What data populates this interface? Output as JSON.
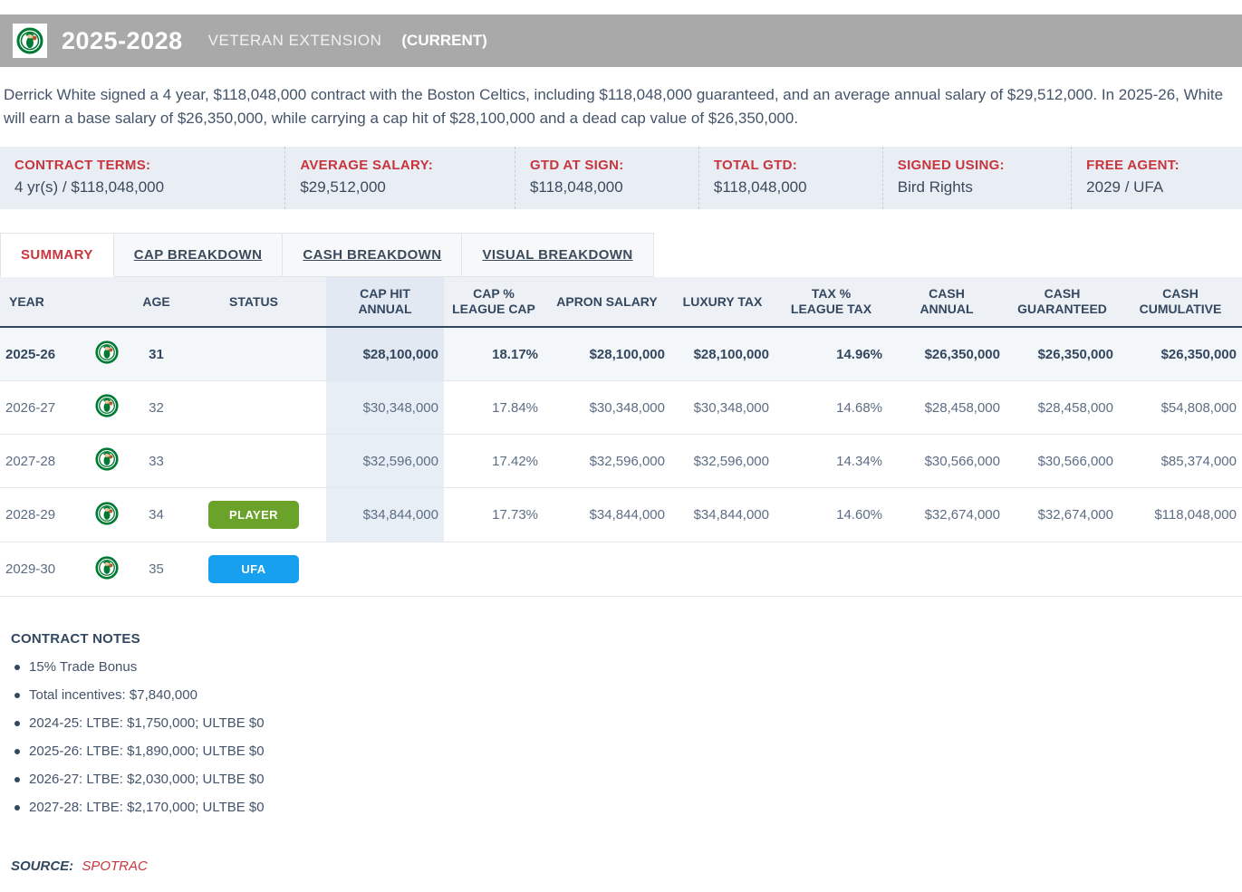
{
  "header": {
    "season_range": "2025-2028",
    "contract_type": "VETERAN EXTENSION",
    "current_flag": "(CURRENT)",
    "team_logo": "boston-celtics-logo"
  },
  "summary_text": "Derrick White signed a 4 year, $118,048,000 contract with the Boston Celtics, including $118,048,000 guaranteed, and an average annual salary of $29,512,000. In 2025-26, White will earn a base salary of $26,350,000, while carrying a cap hit of $28,100,000 and a dead cap value of $26,350,000.",
  "terms": [
    {
      "label": "CONTRACT TERMS:",
      "value": "4 yr(s) / $118,048,000"
    },
    {
      "label": "AVERAGE SALARY:",
      "value": "$29,512,000"
    },
    {
      "label": "GTD AT SIGN:",
      "value": "$118,048,000"
    },
    {
      "label": "TOTAL GTD:",
      "value": "$118,048,000"
    },
    {
      "label": "SIGNED USING:",
      "value": "Bird Rights"
    },
    {
      "label": "FREE AGENT:",
      "value": "2029 / UFA"
    }
  ],
  "tabs": [
    {
      "label": "SUMMARY",
      "active": true
    },
    {
      "label": "CAP BREAKDOWN",
      "active": false
    },
    {
      "label": "CASH BREAKDOWN",
      "active": false
    },
    {
      "label": "VISUAL BREAKDOWN",
      "active": false
    }
  ],
  "chart_data": {
    "type": "table",
    "title": "Contract year-by-year summary",
    "columns": [
      "YEAR",
      "",
      "AGE",
      "STATUS",
      "CAP HIT\nANNUAL",
      "CAP %\nLEAGUE CAP",
      "APRON SALARY",
      "LUXURY TAX",
      "TAX %\nLEAGUE TAX",
      "CASH\nANNUAL",
      "CASH\nGUARANTEED",
      "CASH\nCUMULATIVE"
    ],
    "rows": [
      {
        "year": "2025-26",
        "logo": "celtics-logo",
        "age": "31",
        "status": "",
        "status_color": "",
        "cap_hit": "$28,100,000",
        "cap_pct": "18.17%",
        "apron_salary": "$28,100,000",
        "luxury_tax": "$28,100,000",
        "tax_pct": "14.96%",
        "cash_annual": "$26,350,000",
        "cash_guaranteed": "$26,350,000",
        "cash_cumulative": "$26,350,000",
        "emphasis": true
      },
      {
        "year": "2026-27",
        "logo": "celtics-logo",
        "age": "32",
        "status": "",
        "status_color": "",
        "cap_hit": "$30,348,000",
        "cap_pct": "17.84%",
        "apron_salary": "$30,348,000",
        "luxury_tax": "$30,348,000",
        "tax_pct": "14.68%",
        "cash_annual": "$28,458,000",
        "cash_guaranteed": "$28,458,000",
        "cash_cumulative": "$54,808,000",
        "emphasis": false
      },
      {
        "year": "2027-28",
        "logo": "celtics-logo",
        "age": "33",
        "status": "",
        "status_color": "",
        "cap_hit": "$32,596,000",
        "cap_pct": "17.42%",
        "apron_salary": "$32,596,000",
        "luxury_tax": "$32,596,000",
        "tax_pct": "14.34%",
        "cash_annual": "$30,566,000",
        "cash_guaranteed": "$30,566,000",
        "cash_cumulative": "$85,374,000",
        "emphasis": false
      },
      {
        "year": "2028-29",
        "logo": "celtics-logo",
        "age": "34",
        "status": "PLAYER",
        "status_color": "#6ba32a",
        "cap_hit": "$34,844,000",
        "cap_pct": "17.73%",
        "apron_salary": "$34,844,000",
        "luxury_tax": "$34,844,000",
        "tax_pct": "14.60%",
        "cash_annual": "$32,674,000",
        "cash_guaranteed": "$32,674,000",
        "cash_cumulative": "$118,048,000",
        "emphasis": false
      },
      {
        "year": "2029-30",
        "logo": "celtics-logo",
        "age": "35",
        "status": "UFA",
        "status_color": "#18a0f0",
        "cap_hit": "",
        "cap_pct": "",
        "apron_salary": "",
        "luxury_tax": "",
        "tax_pct": "",
        "cash_annual": "",
        "cash_guaranteed": "",
        "cash_cumulative": "",
        "emphasis": false
      }
    ]
  },
  "notes": {
    "title": "CONTRACT NOTES",
    "items": [
      "15% Trade Bonus",
      "Total incentives: $7,840,000",
      "2024-25: LTBE: $1,750,000; ULTBE $0",
      "2025-26: LTBE: $1,890,000; ULTBE $0",
      "2026-27: LTBE: $2,030,000; ULTBE $0",
      "2027-28: LTBE: $2,170,000; ULTBE $0"
    ]
  },
  "source": {
    "label": "SOURCE:",
    "link": "SPOTRAC"
  },
  "colors": {
    "accent_red": "#c8353d",
    "navy": "#33475f",
    "bar_gray": "#a9a9a9",
    "player_badge": "#6ba32a",
    "ufa_badge": "#18a0f0",
    "strip_bg": "#e9eef4",
    "cap_col_bg": "#e8eef5"
  }
}
